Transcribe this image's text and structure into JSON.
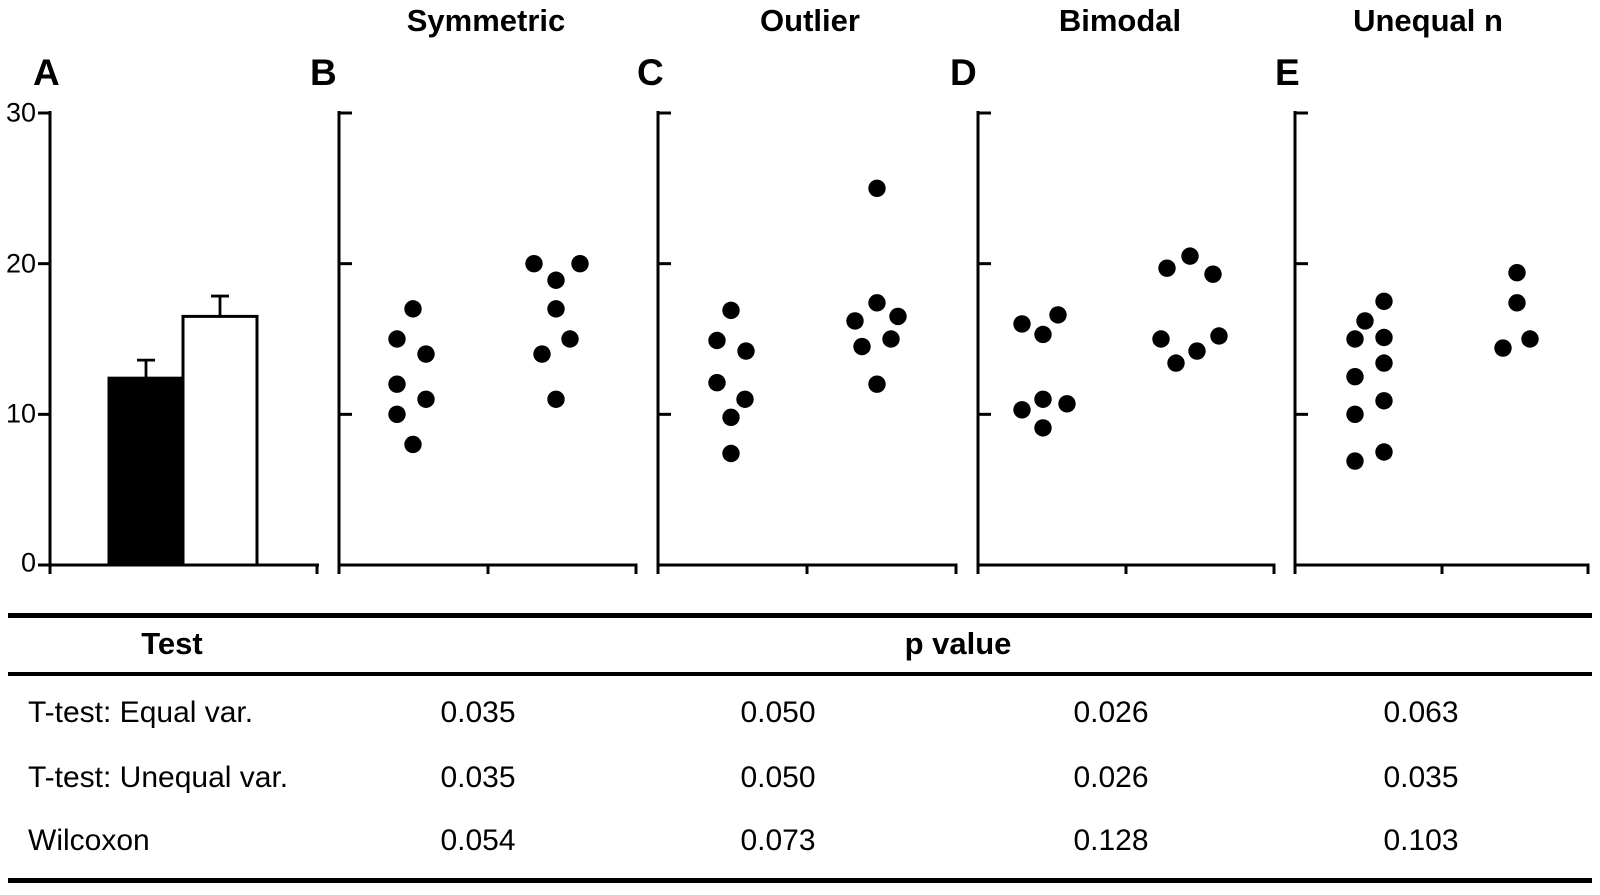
{
  "colors": {
    "ink": "#000000",
    "background": "#ffffff"
  },
  "figure": {
    "letters": [
      "A",
      "B",
      "C",
      "D",
      "E"
    ],
    "y_tick_labels": [
      "30",
      "20",
      "10",
      "0"
    ]
  },
  "chart_data": [
    {
      "panel": "A",
      "type": "bar",
      "ylim": [
        0,
        30
      ],
      "yticks": [
        0,
        10,
        20,
        30
      ],
      "grid": false,
      "series": [
        {
          "name": "group-1-filled",
          "mean": 12.4,
          "error": 1.2,
          "fill": "black"
        },
        {
          "name": "group-2-open",
          "mean": 16.5,
          "error": 1.35,
          "fill": "white"
        }
      ]
    },
    {
      "panel": "B",
      "type": "strip",
      "title": "Symmetric",
      "ylim": [
        0,
        30
      ],
      "groups": [
        {
          "name": "group-1",
          "dots": [
            [
              413,
              17
            ],
            [
              397,
              15
            ],
            [
              426,
              14
            ],
            [
              397,
              12
            ],
            [
              426,
              11
            ],
            [
              397,
              10
            ],
            [
              413,
              8
            ]
          ]
        },
        {
          "name": "group-2",
          "dots": [
            [
              534,
              20
            ],
            [
              580,
              20
            ],
            [
              556,
              18.9
            ],
            [
              556,
              17
            ],
            [
              570,
              15
            ],
            [
              542,
              14
            ],
            [
              556,
              11
            ]
          ]
        }
      ]
    },
    {
      "panel": "C",
      "type": "strip",
      "title": "Outlier",
      "ylim": [
        0,
        30
      ],
      "groups": [
        {
          "name": "group-1",
          "dots": [
            [
              731,
              16.9
            ],
            [
              717,
              14.9
            ],
            [
              746,
              14.2
            ],
            [
              717,
              12.1
            ],
            [
              745,
              11
            ],
            [
              731,
              9.8
            ],
            [
              731,
              7.4
            ]
          ]
        },
        {
          "name": "group-2",
          "dots": [
            [
              877,
              25
            ],
            [
              877,
              17.4
            ],
            [
              898,
              16.5
            ],
            [
              855,
              16.2
            ],
            [
              891,
              15
            ],
            [
              862,
              14.5
            ],
            [
              877,
              12
            ]
          ]
        }
      ]
    },
    {
      "panel": "D",
      "type": "strip",
      "title": "Bimodal",
      "ylim": [
        0,
        30
      ],
      "groups": [
        {
          "name": "group-1",
          "dots": [
            [
              1058,
              16.6
            ],
            [
              1022,
              16
            ],
            [
              1043,
              15.3
            ],
            [
              1043,
              11
            ],
            [
              1067,
              10.7
            ],
            [
              1022,
              10.3
            ],
            [
              1043,
              9.1
            ]
          ]
        },
        {
          "name": "group-2",
          "dots": [
            [
              1190,
              20.5
            ],
            [
              1167,
              19.7
            ],
            [
              1213,
              19.3
            ],
            [
              1219,
              15.2
            ],
            [
              1161,
              15
            ],
            [
              1197,
              14.2
            ],
            [
              1176,
              13.4
            ]
          ]
        }
      ]
    },
    {
      "panel": "E",
      "type": "strip",
      "title": "Unequal n",
      "ylim": [
        0,
        30
      ],
      "groups": [
        {
          "name": "group-1",
          "dots": [
            [
              1384,
              17.5
            ],
            [
              1365,
              16.2
            ],
            [
              1384,
              15.1
            ],
            [
              1355,
              15
            ],
            [
              1384,
              13.4
            ],
            [
              1355,
              12.5
            ],
            [
              1384,
              10.9
            ],
            [
              1355,
              10
            ],
            [
              1384,
              7.5
            ],
            [
              1355,
              6.9
            ]
          ]
        },
        {
          "name": "group-2",
          "dots": [
            [
              1517,
              19.4
            ],
            [
              1517,
              17.4
            ],
            [
              1530,
              15
            ],
            [
              1503,
              14.4
            ]
          ]
        }
      ]
    }
  ],
  "table": {
    "header": {
      "test": "Test",
      "p_value": "p value"
    },
    "rows": [
      {
        "label": "T-test: Equal var.",
        "values": [
          "0.035",
          "0.050",
          "0.026",
          "0.063"
        ]
      },
      {
        "label": "T-test: Unequal var.",
        "values": [
          "0.035",
          "0.050",
          "0.026",
          "0.035"
        ]
      },
      {
        "label": "Wilcoxon",
        "values": [
          "0.054",
          "0.073",
          "0.128",
          "0.103"
        ]
      }
    ]
  }
}
